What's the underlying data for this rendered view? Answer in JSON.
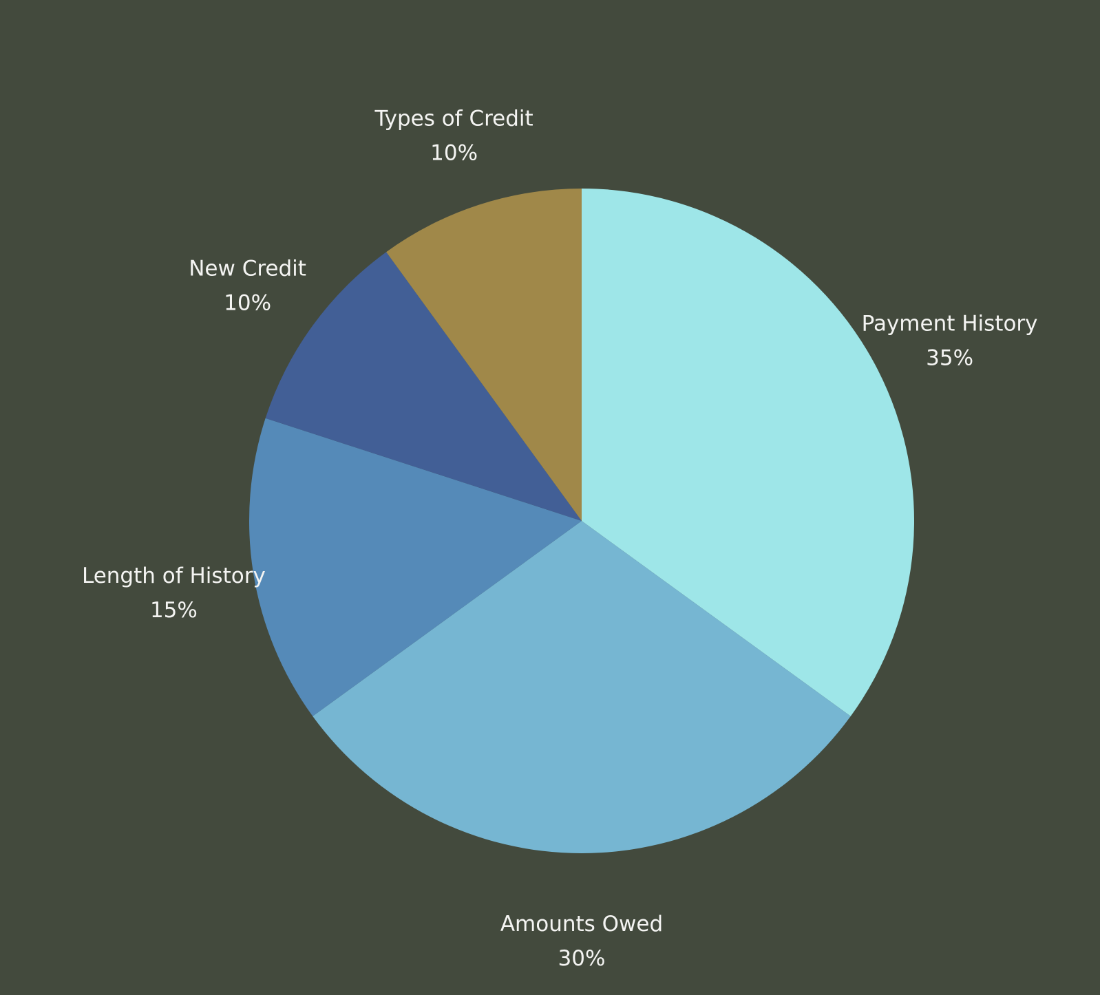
{
  "chart_data": {
    "type": "pie",
    "title": "",
    "background_color": "#434a3d",
    "label_color": "#f4f4f2",
    "start_angle_deg": 90,
    "direction": "clockwise",
    "legend": "none",
    "slices": [
      {
        "label": "Payment History",
        "value": 35,
        "display": "35%",
        "color": "#9ee6e8"
      },
      {
        "label": "Amounts Owed",
        "value": 30,
        "display": "30%",
        "color": "#76b6d2"
      },
      {
        "label": "Length of History",
        "value": 15,
        "display": "15%",
        "color": "#558ab8"
      },
      {
        "label": "New Credit",
        "value": 10,
        "display": "10%",
        "color": "#425f96"
      },
      {
        "label": "Types of Credit",
        "value": 10,
        "display": "10%",
        "color": "#a08849"
      }
    ]
  }
}
